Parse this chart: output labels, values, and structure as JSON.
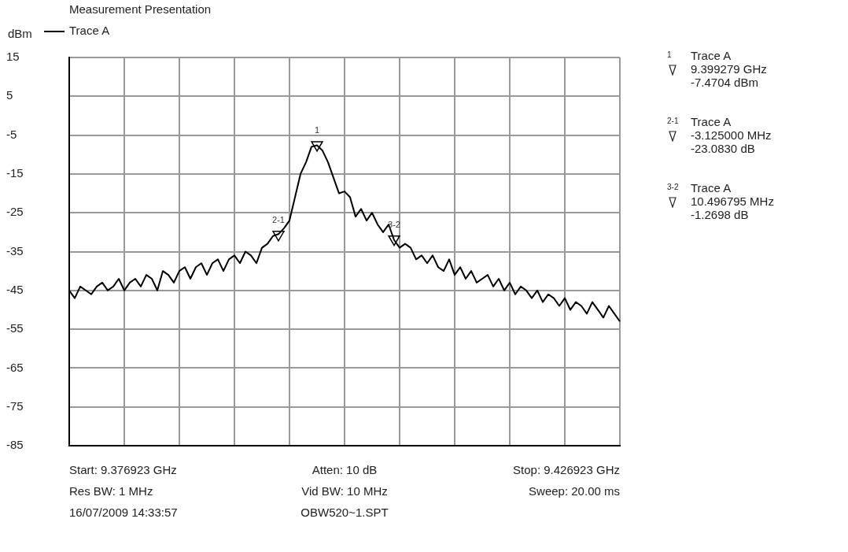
{
  "chart_data": {
    "type": "line",
    "title": "Measurement Presentation",
    "ylabel": "dBm",
    "categories": [
      null,
      null,
      null,
      null,
      null,
      null,
      null,
      null,
      null,
      null,
      null,
      null,
      null,
      null,
      null,
      null,
      null,
      null,
      null,
      null,
      null,
      null,
      null,
      null,
      null,
      null,
      null,
      null,
      null,
      null,
      null,
      null,
      null,
      null,
      null,
      null,
      null,
      null,
      null,
      null,
      null,
      null,
      null,
      null,
      null,
      null,
      null,
      null,
      null,
      null,
      null,
      null,
      null,
      null,
      null,
      null,
      null,
      null,
      null,
      null,
      null,
      null,
      null,
      null,
      null,
      null,
      null,
      null,
      null,
      null,
      null,
      null,
      null,
      null,
      null,
      null,
      null,
      null,
      null,
      null,
      null,
      null,
      null,
      null,
      null,
      null,
      null,
      null,
      null,
      null,
      null,
      null,
      null,
      null,
      null,
      null,
      null,
      null,
      null,
      null,
      null
    ],
    "ylim": [
      -85,
      15
    ],
    "yticks": [
      -85,
      -75,
      -65,
      -55,
      -45,
      -35,
      -25,
      -15,
      -5,
      5,
      15
    ],
    "grid": true,
    "legend": "top left",
    "tick_labels": "y",
    "series": [
      {
        "name": "Trace A",
        "color": "#000000",
        "marker": "none",
        "values": [
          -45,
          -47,
          -44,
          -45,
          -46,
          -44,
          -43,
          -45,
          -44,
          -42,
          -45,
          -43,
          -42,
          -44,
          -41,
          -42,
          -45,
          -40,
          -41,
          -43,
          -40,
          -39,
          -42,
          -39,
          -38,
          -41,
          -38,
          -37,
          -40,
          -37,
          -36,
          -38,
          -35,
          -36,
          -38,
          -34,
          -33,
          -31,
          -30.5,
          -29,
          -27,
          -21,
          -15,
          -12,
          -8,
          -7.6,
          -9,
          -12,
          -16,
          -20,
          -19.5,
          -21,
          -26,
          -24,
          -27,
          -25,
          -28,
          -30,
          -28,
          -32,
          -34,
          -33,
          -34,
          -37,
          -36,
          -38,
          -36,
          -39,
          -40,
          -37,
          -41,
          -39,
          -42,
          -40,
          -43,
          -42,
          -41,
          -44,
          -42,
          -45,
          -43,
          -46,
          -44,
          -45,
          -47,
          -45,
          -48,
          -46,
          -47,
          -49,
          -47,
          -50,
          -48,
          -49,
          -51,
          -48,
          -50,
          -52,
          -49,
          -51,
          -53
        ]
      },
      {
        "type": "scatter",
        "color": "#000000",
        "marker": "triangle",
        "values": [
          null,
          null,
          null,
          null,
          null,
          null,
          null,
          null,
          null,
          null,
          null,
          null,
          null,
          null,
          null,
          null,
          null,
          null,
          null,
          null,
          null,
          null,
          null,
          null,
          null,
          null,
          null,
          null,
          null,
          null,
          null,
          null,
          null,
          null,
          null,
          null,
          null,
          null,
          -30.6,
          null,
          null,
          null,
          null,
          null,
          null,
          -7.5,
          null,
          null,
          null,
          null,
          null,
          null,
          null,
          null,
          null,
          null,
          null,
          null,
          null,
          -31.8,
          null,
          null,
          null,
          null,
          null,
          null,
          null,
          null,
          null,
          null,
          null,
          null,
          null,
          null,
          null,
          null,
          null,
          null,
          null,
          null,
          null,
          null,
          null,
          null,
          null,
          null,
          null,
          null,
          null,
          null,
          null,
          null,
          null,
          null,
          null,
          null,
          null,
          null,
          null,
          null,
          null
        ]
      }
    ],
    "annotations": [
      {
        "text": "1",
        "y": -7.5
      },
      {
        "text": "2-1",
        "y": -30.6
      },
      {
        "text": "3-2",
        "y": -31.8
      },
      "Start: 9.376923 GHz",
      "Atten: 10 dB",
      "Stop: 9.426923 GHz",
      "Res BW: 1 MHz",
      "Vid BW: 10 MHz",
      "Sweep: 20.00 ms",
      "16/07/2009 14:33:57",
      "OBW520~1.SPT",
      "1",
      "Trace A",
      "9.399279 GHz",
      "-7.4704 dBm",
      "2-1",
      "Trace A",
      "-3.125000 MHz",
      "-23.0830 dB",
      "3-2",
      "Trace A",
      "10.496795 MHz",
      "-1.2698 dB"
    ]
  }
}
